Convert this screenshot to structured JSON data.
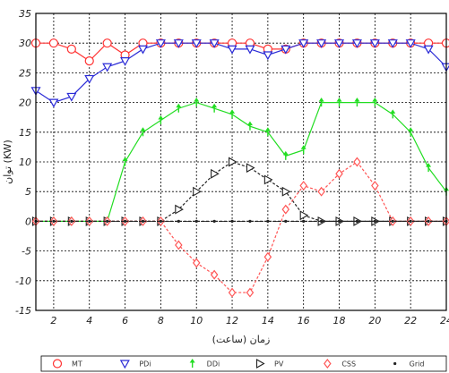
{
  "chart_data": {
    "type": "line",
    "xlabel": "زمان (ساعت)",
    "ylabel": "توان (KW)",
    "xlim": [
      1,
      24
    ],
    "ylim": [
      -15,
      35
    ],
    "xticks": [
      "2",
      "4",
      "6",
      "8",
      "10",
      "12",
      "14",
      "16",
      "18",
      "20",
      "22",
      "24"
    ],
    "yticks": [
      "35",
      "30",
      "25",
      "20",
      "15",
      "10",
      "5",
      "0",
      "-5",
      "-10",
      "-15"
    ],
    "grid": true,
    "legend": "bottom",
    "series": [
      {
        "name": "MT",
        "color": "#ff3333",
        "marker": "circle",
        "x": [
          1,
          2,
          3,
          4,
          5,
          6,
          7,
          8,
          9,
          10,
          11,
          12,
          13,
          14,
          15,
          16,
          17,
          18,
          19,
          20,
          21,
          22,
          23,
          24
        ],
        "y": [
          30,
          30,
          29,
          27,
          30,
          28,
          30,
          30,
          30,
          30,
          30,
          30,
          30,
          29,
          29,
          30,
          30,
          30,
          30,
          30,
          30,
          30,
          30,
          30
        ]
      },
      {
        "name": "PDi",
        "color": "#2a2ad6",
        "marker": "triangle-down",
        "x": [
          1,
          2,
          3,
          4,
          5,
          6,
          7,
          8,
          9,
          10,
          11,
          12,
          13,
          14,
          15,
          16,
          17,
          18,
          19,
          20,
          21,
          22,
          23,
          24
        ],
        "y": [
          22,
          20,
          21,
          24,
          26,
          27,
          29,
          30,
          30,
          30,
          30,
          29,
          29,
          28,
          29,
          30,
          30,
          30,
          30,
          30,
          30,
          30,
          29,
          26
        ]
      },
      {
        "name": "DDi",
        "color": "#22dd22",
        "marker": "arrow-up",
        "x": [
          1,
          2,
          3,
          4,
          5,
          6,
          7,
          8,
          9,
          10,
          11,
          12,
          13,
          14,
          15,
          16,
          17,
          18,
          19,
          20,
          21,
          22,
          23,
          24
        ],
        "y": [
          0,
          0,
          0,
          0,
          0,
          10,
          15,
          17,
          19,
          20,
          19,
          18,
          16,
          15,
          11,
          12,
          20,
          20,
          20,
          20,
          18,
          15,
          9,
          5
        ]
      },
      {
        "name": "PV",
        "color": "#222222",
        "marker": "triangle-right",
        "x": [
          1,
          2,
          3,
          4,
          5,
          6,
          7,
          8,
          9,
          10,
          11,
          12,
          13,
          14,
          15,
          16,
          17,
          18,
          19,
          20,
          21,
          22,
          23,
          24
        ],
        "y": [
          0,
          0,
          0,
          0,
          0,
          0,
          0,
          0,
          2,
          5,
          8,
          10,
          9,
          7,
          5,
          1,
          0,
          0,
          0,
          0,
          0,
          0,
          0,
          0
        ]
      },
      {
        "name": "CSS",
        "color": "#ff5555",
        "marker": "diamond",
        "x": [
          1,
          2,
          3,
          4,
          5,
          6,
          7,
          8,
          9,
          10,
          11,
          12,
          13,
          14,
          15,
          16,
          17,
          18,
          19,
          20,
          21,
          22,
          23,
          24
        ],
        "y": [
          0,
          0,
          0,
          0,
          0,
          0,
          0,
          0,
          -4,
          -7,
          -9,
          -12,
          -12,
          -6,
          2,
          6,
          5,
          8,
          10,
          6,
          0,
          0,
          0,
          0
        ]
      },
      {
        "name": "Grid",
        "color": "#222222",
        "marker": "dot",
        "x": [
          1,
          2,
          3,
          4,
          5,
          6,
          7,
          8,
          9,
          10,
          11,
          12,
          13,
          14,
          15,
          16,
          17,
          18,
          19,
          20,
          21,
          22,
          23,
          24
        ],
        "y": [
          0,
          0,
          0,
          0,
          0,
          0,
          0,
          0,
          0,
          0,
          0,
          0,
          0,
          0,
          0,
          0,
          0,
          0,
          0,
          0,
          0,
          0,
          0,
          0
        ]
      }
    ]
  }
}
